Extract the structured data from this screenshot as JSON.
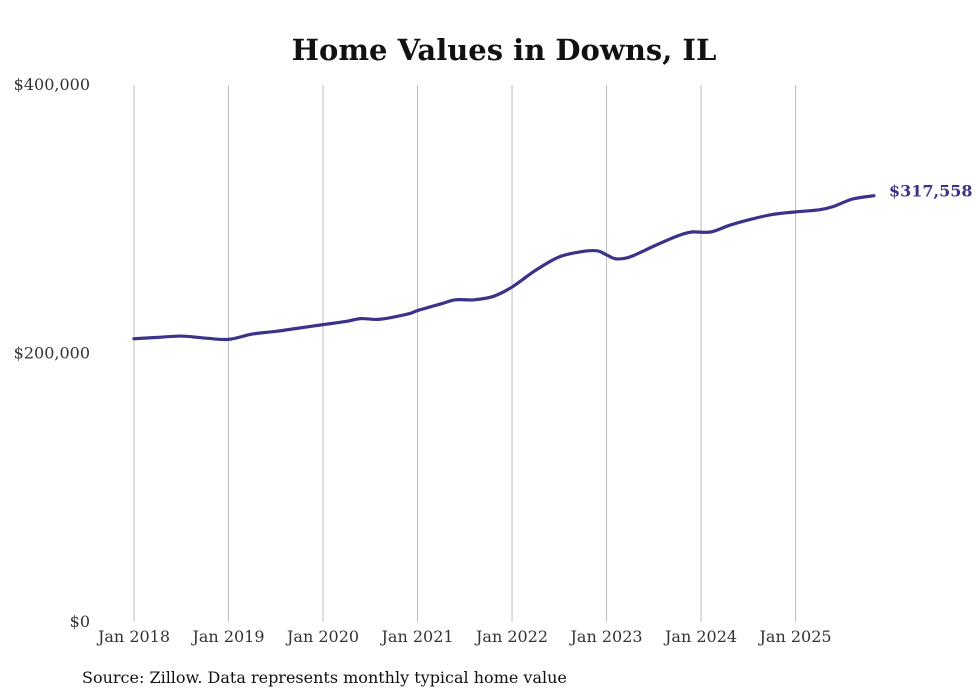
{
  "chart_data": {
    "type": "line",
    "title": "Home Values in Downs, IL",
    "xlabel": "",
    "ylabel": "",
    "x_ticks": [
      {
        "label": "Jan 2018",
        "t": 2018.0
      },
      {
        "label": "Jan 2019",
        "t": 2019.0
      },
      {
        "label": "Jan 2020",
        "t": 2020.0
      },
      {
        "label": "Jan 2021",
        "t": 2021.0
      },
      {
        "label": "Jan 2022",
        "t": 2022.0
      },
      {
        "label": "Jan 2023",
        "t": 2023.0
      },
      {
        "label": "Jan 2024",
        "t": 2024.0
      },
      {
        "label": "Jan 2025",
        "t": 2025.0
      }
    ],
    "y_ticks": [
      {
        "label": "$0",
        "value": 0
      },
      {
        "label": "$200,000",
        "value": 200000
      },
      {
        "label": "$400,000",
        "value": 400000
      }
    ],
    "xlim": [
      2018.0,
      2025.83
    ],
    "ylim": [
      0,
      400000
    ],
    "grid": "vertical",
    "color": "#3b3289",
    "series": [
      {
        "name": "Typical home value",
        "x": [
          2018.0,
          2018.25,
          2018.5,
          2018.75,
          2019.0,
          2019.25,
          2019.5,
          2019.75,
          2020.0,
          2020.25,
          2020.4,
          2020.6,
          2020.9,
          2021.0,
          2021.25,
          2021.4,
          2021.6,
          2021.8,
          2022.0,
          2022.25,
          2022.5,
          2022.75,
          2022.9,
          2023.0,
          2023.1,
          2023.25,
          2023.5,
          2023.75,
          2023.9,
          2024.1,
          2024.3,
          2024.5,
          2024.75,
          2025.0,
          2025.25,
          2025.4,
          2025.6,
          2025.83
        ],
        "values": [
          211000,
          212000,
          213000,
          211500,
          210500,
          214500,
          216500,
          219000,
          221500,
          224000,
          226000,
          225500,
          229500,
          232000,
          237000,
          240000,
          240000,
          242500,
          249500,
          262000,
          272000,
          276000,
          276500,
          273500,
          270500,
          272000,
          280000,
          287500,
          290500,
          290500,
          295500,
          299500,
          303500,
          305500,
          307000,
          309500,
          315000,
          317558
        ]
      }
    ],
    "end_label": "$317,558",
    "source": "Source: Zillow. Data represents monthly typical home value"
  }
}
